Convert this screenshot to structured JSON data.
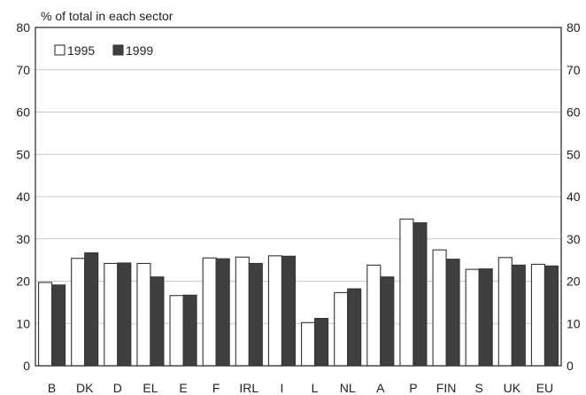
{
  "chart_data": {
    "type": "bar",
    "title": "",
    "unit_label": "% of total in each sector",
    "xlabel": "",
    "ylabel": "",
    "ylim": [
      0,
      80
    ],
    "yticks": [
      0,
      10,
      20,
      30,
      40,
      50,
      60,
      70,
      80
    ],
    "grid": true,
    "legend_position": "top-left",
    "categories": [
      "B",
      "DK",
      "D",
      "EL",
      "E",
      "F",
      "IRL",
      "I",
      "L",
      "NL",
      "A",
      "P",
      "FIN",
      "S",
      "UK",
      "EU"
    ],
    "series": [
      {
        "name": "1995",
        "color": "#ffffff",
        "values": [
          19.7,
          25.4,
          24.2,
          24.2,
          16.6,
          25.5,
          25.7,
          26.0,
          10.2,
          17.3,
          23.8,
          34.7,
          27.4,
          22.8,
          25.6,
          24.0
        ]
      },
      {
        "name": "1999",
        "color": "#3f3f3f",
        "values": [
          19.1,
          26.7,
          24.3,
          21.0,
          16.7,
          25.3,
          24.2,
          25.9,
          11.2,
          18.2,
          21.0,
          33.8,
          25.2,
          22.9,
          23.8,
          23.6
        ]
      }
    ]
  }
}
